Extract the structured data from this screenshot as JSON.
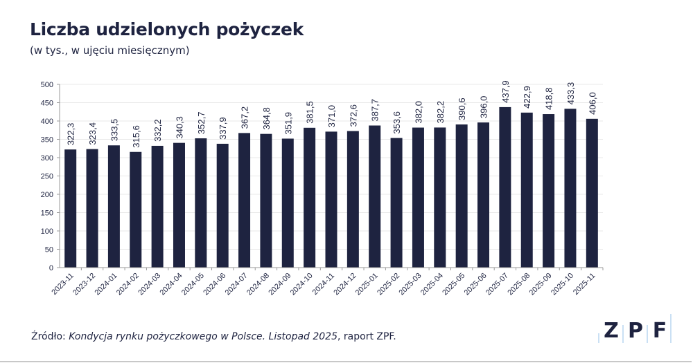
{
  "title": "Liczba udzielonych pożyczek",
  "subtitle": "(w tys., w ujęciu miesięcznym)",
  "source": {
    "prefix": "Źródło: ",
    "italic": "Kondycja rynku pożyczkowego w Polsce. Listopad 2025",
    "suffix": ", raport ZPF."
  },
  "logo": {
    "text": "ZPF",
    "letters": [
      "Z",
      "P",
      "F"
    ],
    "color": "#1e2340",
    "accent": "#b9d6f0"
  },
  "chart_data": {
    "type": "bar",
    "title": "Liczba udzielonych pożyczek",
    "subtitle": "(w tys., w ujęciu miesięcznym)",
    "categories": [
      "2023-11",
      "2023-12",
      "2024-01",
      "2024-02",
      "2024-03",
      "2024-04",
      "2024-05",
      "2024-06",
      "2024-07",
      "2024-08",
      "2024-09",
      "2024-10",
      "2024-11",
      "2024-12",
      "2025-01",
      "2025-02",
      "2025-03",
      "2025-04",
      "2025-05",
      "2025-06",
      "2025-07",
      "2025-08",
      "2025-09",
      "2025-10",
      "2025-11"
    ],
    "values": [
      322.3,
      323.4,
      333.5,
      315.6,
      332.2,
      340.3,
      352.7,
      337.9,
      367.2,
      364.8,
      351.9,
      381.5,
      371.0,
      372.6,
      387.7,
      353.6,
      382.0,
      382.2,
      390.6,
      396.0,
      437.9,
      422.9,
      418.8,
      433.3,
      406.0
    ],
    "labels": [
      "322,3",
      "323,4",
      "333,5",
      "315,6",
      "332,2",
      "340,3",
      "352,7",
      "337,9",
      "367,2",
      "364,8",
      "351,9",
      "381,5",
      "371,0",
      "372,6",
      "387,7",
      "353,6",
      "382,0",
      "382,2",
      "390,6",
      "396,0",
      "437,9",
      "422,9",
      "418,8",
      "433,3",
      "406,0"
    ],
    "yticks": [
      0,
      50,
      100,
      150,
      200,
      250,
      300,
      350,
      400,
      450,
      500
    ],
    "ylim": [
      0,
      500
    ],
    "grid": true,
    "bar_color": "#1e2340",
    "grid_color": "#e8e8e8"
  }
}
